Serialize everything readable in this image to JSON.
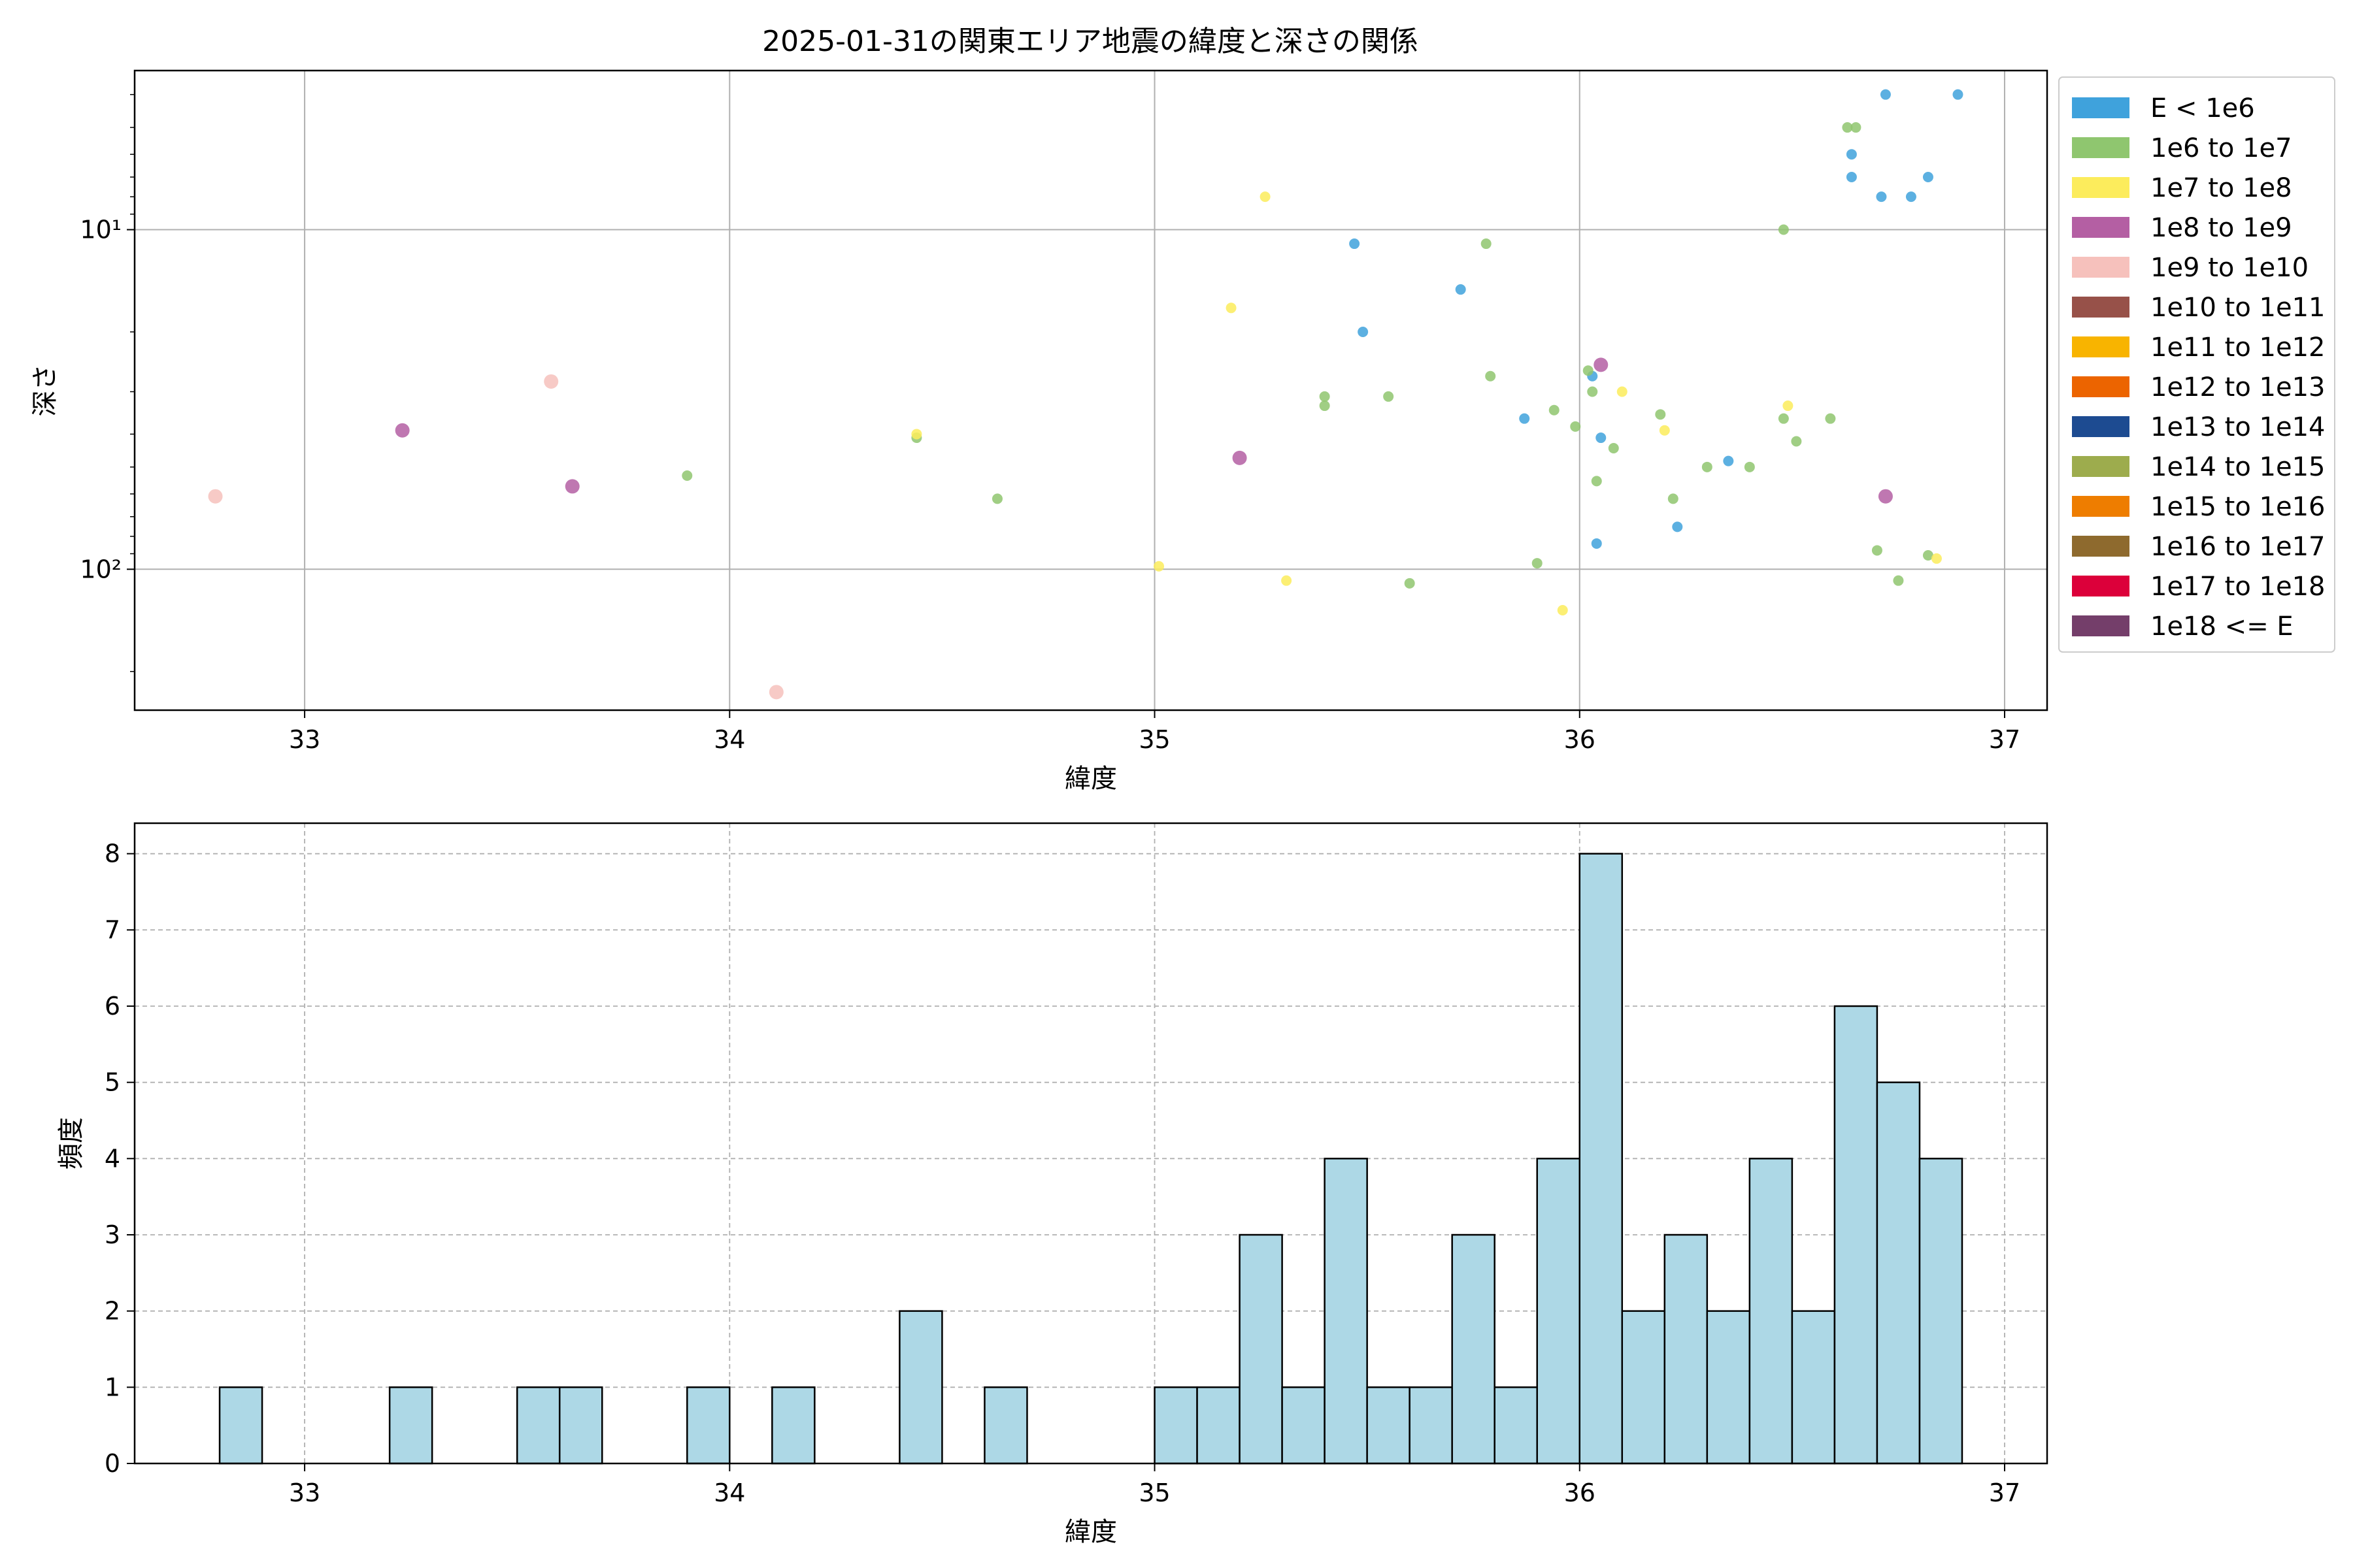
{
  "chart_data": [
    {
      "type": "scatter",
      "title": "2025-01-31の関東エリア地震の緯度と深さの関係",
      "xlabel": "緯度",
      "ylabel": "深さ",
      "xlim": [
        32.6,
        37.1
      ],
      "ylim": [
        3.4,
        260
      ],
      "yscale": "log",
      "y_inverted": true,
      "grid": true,
      "x_ticks": [
        33,
        34,
        35,
        36,
        37
      ],
      "y_ticks": [
        10,
        100
      ],
      "y_tick_labels": [
        "10¹",
        "10²"
      ],
      "legend": {
        "placement": "outside-right",
        "entries": [
          {
            "label": "E < 1e6",
            "color": "#3fa2dc"
          },
          {
            "label": "1e6 to 1e7",
            "color": "#8fc66f"
          },
          {
            "label": "1e7 to 1e8",
            "color": "#fcec5c"
          },
          {
            "label": "1e8 to 1e9",
            "color": "#b45fa3"
          },
          {
            "label": "1e9 to 1e10",
            "color": "#f6c1bc"
          },
          {
            "label": "1e10 to 1e11",
            "color": "#975149"
          },
          {
            "label": "1e11 to 1e12",
            "color": "#f8b400"
          },
          {
            "label": "1e12 to 1e13",
            "color": "#ec6400"
          },
          {
            "label": "1e13 to 1e14",
            "color": "#1d4b91"
          },
          {
            "label": "1e14 to 1e15",
            "color": "#9dac4d"
          },
          {
            "label": "1e15 to 1e16",
            "color": "#ee7d00"
          },
          {
            "label": "1e16 to 1e17",
            "color": "#8e6a2e"
          },
          {
            "label": "1e17 to 1e18",
            "color": "#dc003a"
          },
          {
            "label": "1e18 <= E",
            "color": "#743e6a"
          }
        ]
      },
      "series": [
        {
          "category": "E < 1e6",
          "points": [
            [
              36.72,
              4.0
            ],
            [
              36.89,
              4.0
            ],
            [
              36.64,
              6.0
            ],
            [
              36.64,
              7.0
            ],
            [
              36.71,
              8.0
            ],
            [
              36.78,
              8.0
            ],
            [
              36.82,
              7.0
            ],
            [
              35.47,
              11.0
            ],
            [
              35.72,
              15.0
            ],
            [
              35.49,
              20.0
            ],
            [
              36.03,
              27.0
            ],
            [
              35.87,
              36.0
            ],
            [
              36.05,
              41.0
            ],
            [
              36.35,
              48.0
            ],
            [
              36.23,
              75.0
            ],
            [
              36.04,
              84.0
            ]
          ]
        },
        {
          "category": "1e6 to 1e7",
          "points": [
            [
              36.63,
              5.0
            ],
            [
              36.65,
              5.0
            ],
            [
              36.48,
              10.0
            ],
            [
              35.78,
              11.0
            ],
            [
              35.79,
              27.0
            ],
            [
              36.02,
              26.0
            ],
            [
              35.4,
              31.0
            ],
            [
              35.4,
              33.0
            ],
            [
              35.55,
              31.0
            ],
            [
              36.03,
              30.0
            ],
            [
              35.94,
              34.0
            ],
            [
              36.19,
              35.0
            ],
            [
              36.48,
              36.0
            ],
            [
              36.59,
              36.0
            ],
            [
              35.99,
              38.0
            ],
            [
              34.44,
              41.0
            ],
            [
              36.51,
              42.0
            ],
            [
              36.08,
              44.0
            ],
            [
              36.3,
              50.0
            ],
            [
              36.4,
              50.0
            ],
            [
              33.9,
              53.0
            ],
            [
              36.04,
              55.0
            ],
            [
              36.22,
              62.0
            ],
            [
              34.63,
              62.0
            ],
            [
              36.7,
              88.0
            ],
            [
              36.82,
              91.0
            ],
            [
              35.9,
              96.0
            ],
            [
              36.75,
              108.0
            ],
            [
              35.6,
              110.0
            ]
          ]
        },
        {
          "category": "1e7 to 1e8",
          "points": [
            [
              35.26,
              8.0
            ],
            [
              35.18,
              17.0
            ],
            [
              36.1,
              30.0
            ],
            [
              36.49,
              33.0
            ],
            [
              36.2,
              39.0
            ],
            [
              34.44,
              40.0
            ],
            [
              35.01,
              98.0
            ],
            [
              35.31,
              108.0
            ],
            [
              36.84,
              93.0
            ],
            [
              35.96,
              132.0
            ]
          ]
        },
        {
          "category": "1e8 to 1e9",
          "points": [
            [
              36.05,
              25.0
            ],
            [
              33.23,
              39.0
            ],
            [
              35.2,
              47.0
            ],
            [
              33.63,
              57.0
            ],
            [
              36.72,
              61.0
            ]
          ]
        },
        {
          "category": "1e9 to 1e10",
          "points": [
            [
              33.58,
              28.0
            ],
            [
              32.79,
              61.0
            ],
            [
              34.11,
              230.0
            ]
          ]
        }
      ]
    },
    {
      "type": "histogram",
      "xlabel": "緯度",
      "ylabel": "頻度",
      "xlim": [
        32.6,
        37.1
      ],
      "ylim": [
        0,
        8.4
      ],
      "grid": true,
      "grid_style": "dashed",
      "bar_color": "#add8e6",
      "edge_color": "#000000",
      "x_ticks": [
        33,
        34,
        35,
        36,
        37
      ],
      "y_ticks": [
        0,
        1,
        2,
        3,
        4,
        5,
        6,
        7,
        8
      ],
      "bin_start": 32.8,
      "bin_width": 0.1,
      "counts": [
        1,
        0,
        0,
        0,
        1,
        0,
        0,
        1,
        1,
        0,
        0,
        1,
        0,
        1,
        0,
        0,
        2,
        0,
        1,
        0,
        0,
        0,
        1,
        1,
        3,
        1,
        4,
        1,
        1,
        3,
        1,
        4,
        8,
        2,
        3,
        2,
        4,
        2,
        6,
        5,
        4
      ]
    }
  ]
}
